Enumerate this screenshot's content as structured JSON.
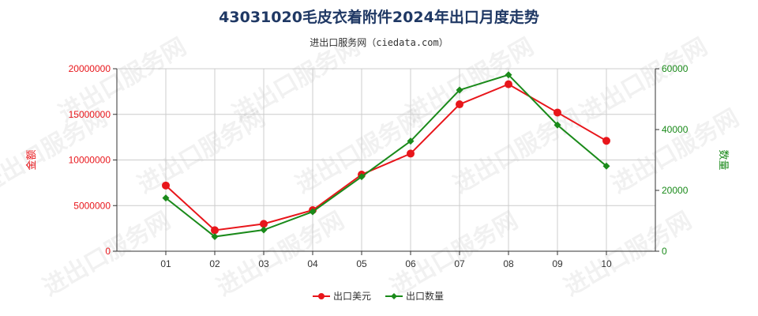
{
  "chart_data": {
    "type": "line",
    "title": "43031020毛皮衣着附件2024年出口月度走势",
    "subtitle": "进出口服务网（ciedata.com）",
    "categories": [
      "01",
      "02",
      "03",
      "04",
      "05",
      "06",
      "07",
      "08",
      "09",
      "10"
    ],
    "y_left_label": "金额",
    "y_right_label": "数量",
    "y_left_lim": [
      0,
      20000000
    ],
    "y_left_ticks": [
      0,
      5000000,
      10000000,
      15000000,
      20000000
    ],
    "y_right_lim": [
      0,
      60000
    ],
    "y_right_ticks": [
      0,
      20000,
      40000,
      60000
    ],
    "grid": true,
    "legend_position": "bottom-center",
    "series": [
      {
        "name": "出口美元",
        "axis": "left",
        "color": "#e8161b",
        "values": [
          7200000,
          2300000,
          3000000,
          4500000,
          8400000,
          10700000,
          16100000,
          18300000,
          15200000,
          12100000
        ]
      },
      {
        "name": "出口数量",
        "axis": "right",
        "color": "#1a8a1a",
        "values": [
          17500,
          4800,
          7000,
          13000,
          24500,
          36200,
          53000,
          58000,
          41500,
          28000
        ]
      }
    ],
    "colors": {
      "left_axis": "#e8161b",
      "right_axis": "#1a8a1a",
      "grid": "#cccccc",
      "axis_line": "#333333"
    },
    "watermark_text": "进出口服务网"
  }
}
